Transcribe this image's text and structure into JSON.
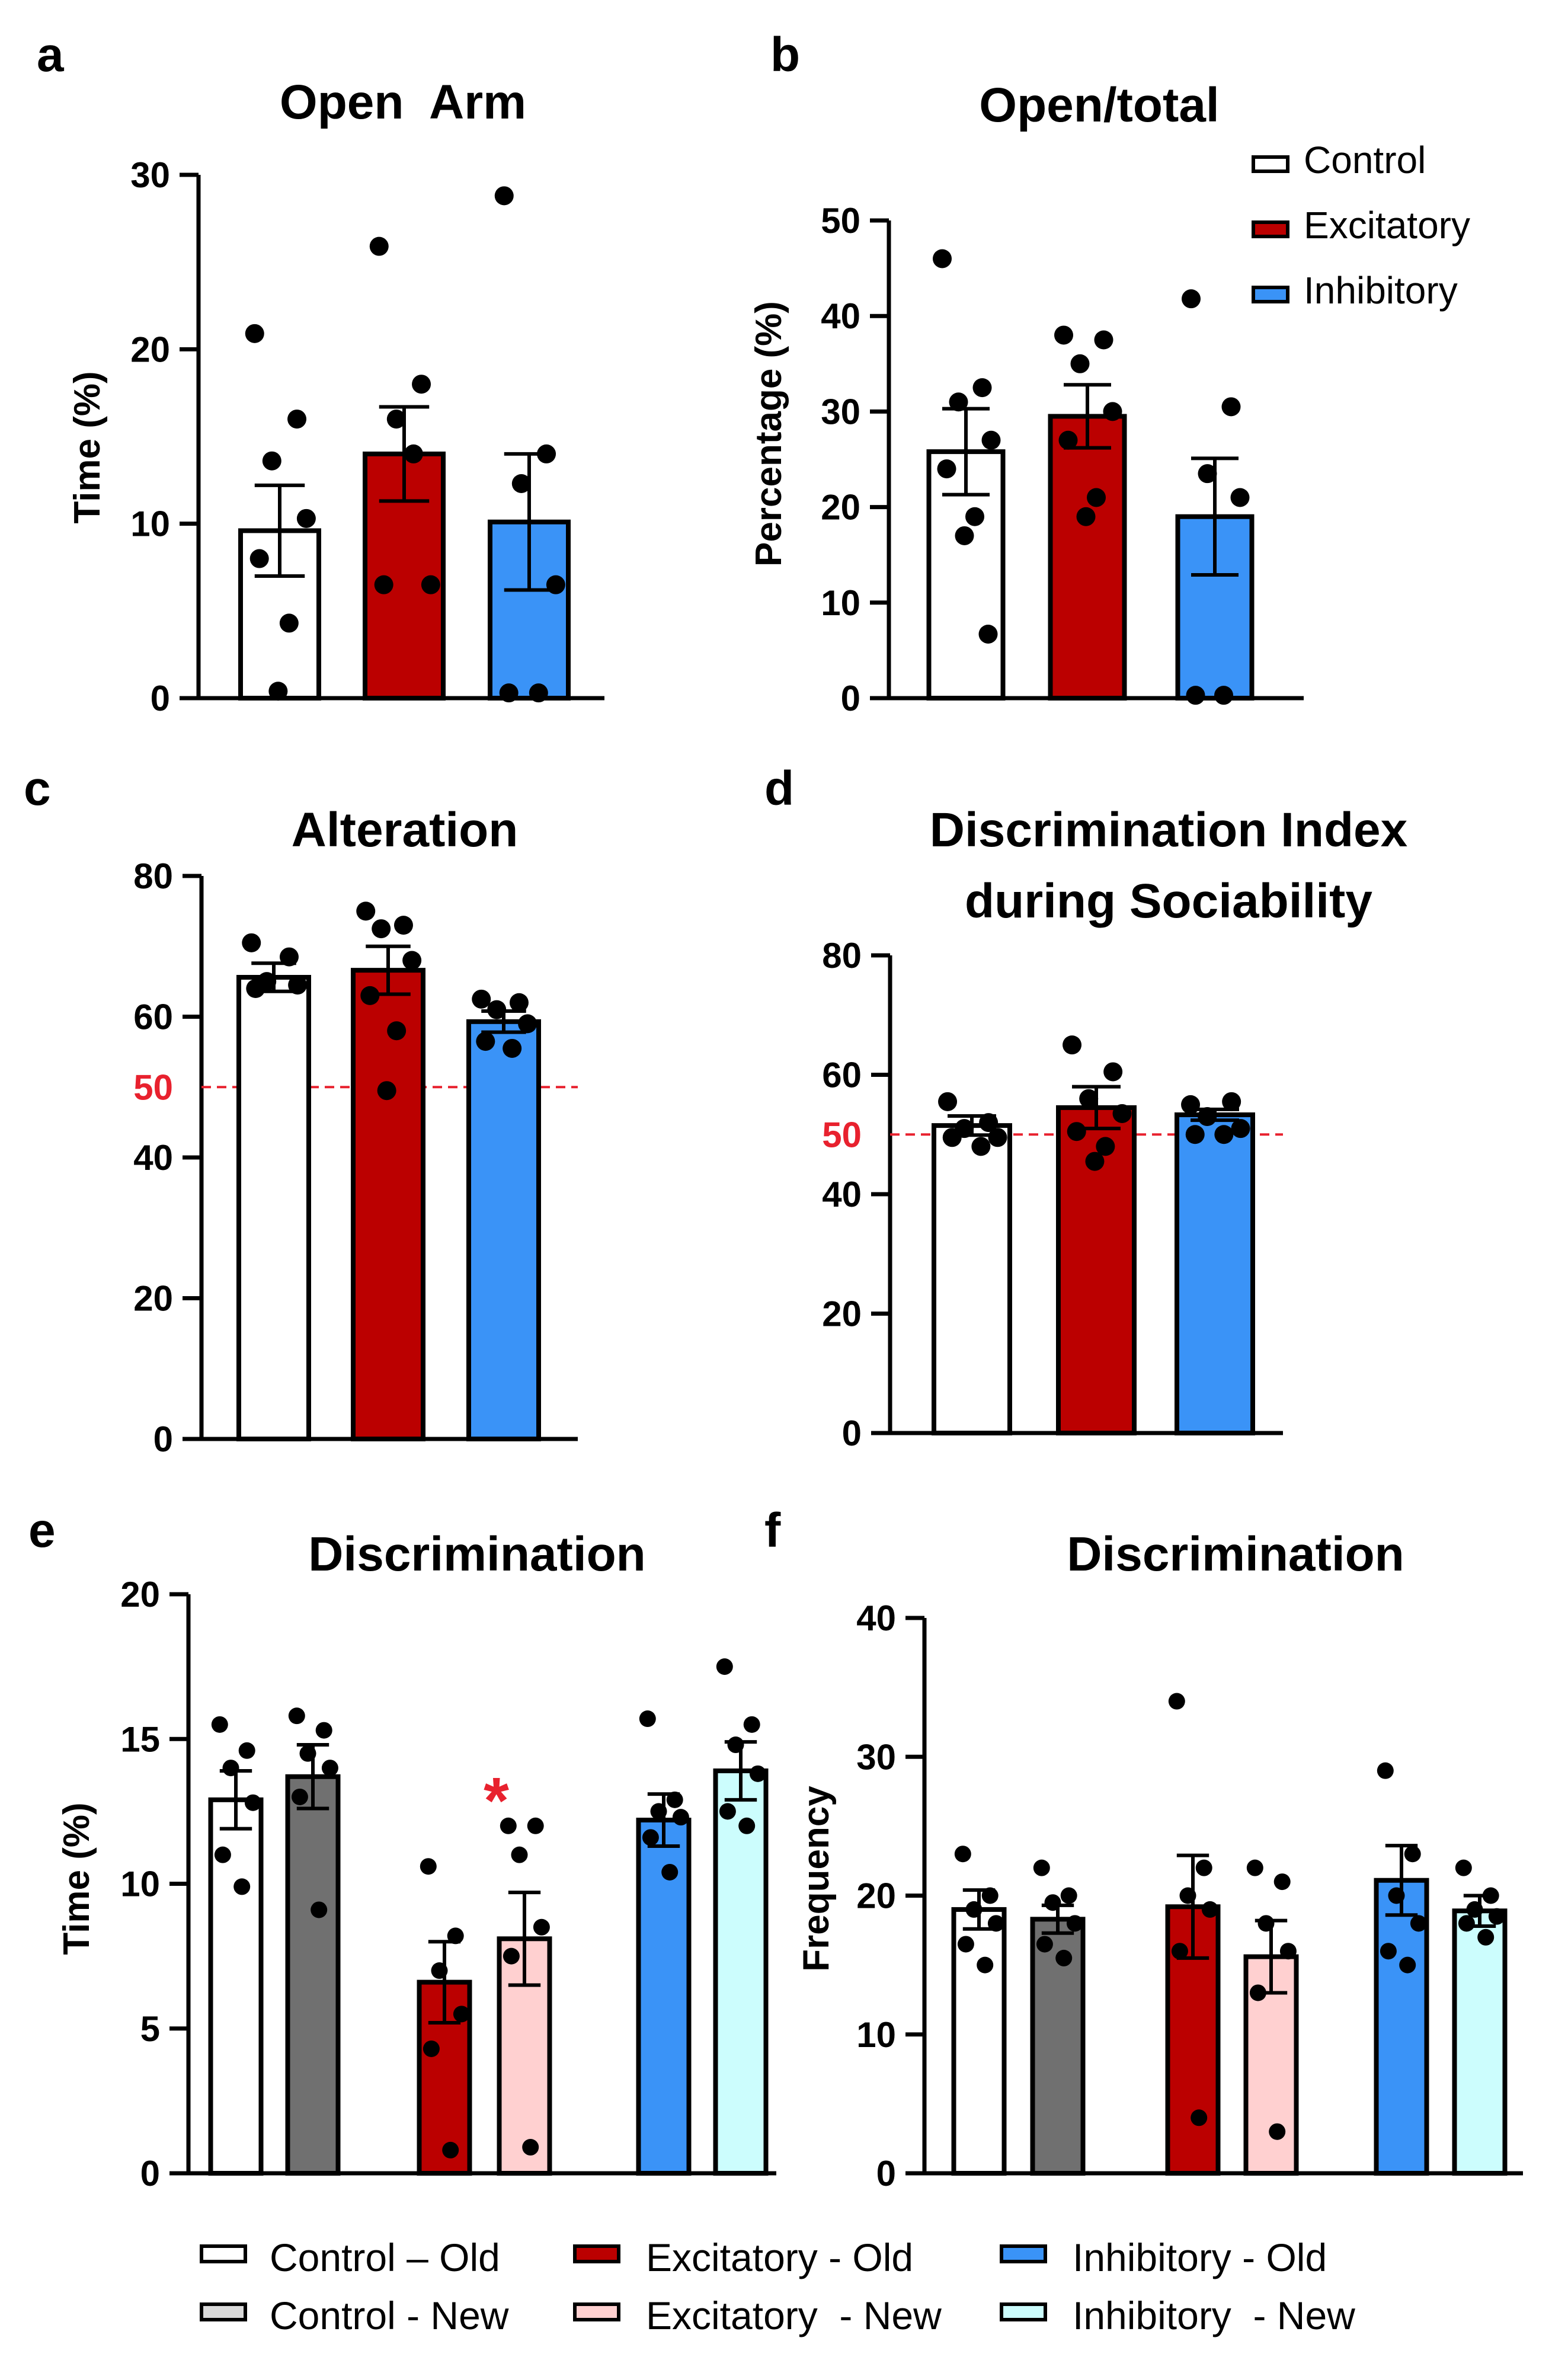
{
  "colors": {
    "control": "#ffffff",
    "excitatory": "#bb0000",
    "inhibitory": "#3a93f7",
    "control_old": "#ffffff",
    "control_new": "#707070",
    "excitatory_old": "#bb0000",
    "excitatory_new": "#ffd0d0",
    "inhibitory_old": "#3a93f7",
    "inhibitory_new": "#ccfdfd",
    "reference": "#e8212e",
    "significance": "#e8212e"
  },
  "legend_top": {
    "items": [
      {
        "label": "Control",
        "color": "#ffffff"
      },
      {
        "label": "Excitatory",
        "color": "#bb0000"
      },
      {
        "label": "Inhibitory",
        "color": "#3a93f7"
      }
    ]
  },
  "legend_bottom": {
    "items": [
      {
        "label": "Control – Old",
        "color": "#ffffff"
      },
      {
        "label": "Excitatory - Old",
        "color": "#bb0000"
      },
      {
        "label": "Inhibitory - Old",
        "color": "#3a93f7"
      },
      {
        "label": "Control - New",
        "color": "#d9d9d9"
      },
      {
        "label": "Excitatory  - New",
        "color": "#ffd0d0"
      },
      {
        "label": "Inhibitory  - New",
        "color": "#ccfdfd"
      }
    ]
  },
  "chart_data": [
    {
      "panel": "a",
      "type": "bar",
      "title": "Open  Arm",
      "xlabel": "",
      "ylabel": "Time (%)",
      "ylim": [
        0,
        30
      ],
      "yticks": [
        0,
        10,
        20,
        30
      ],
      "categories": [
        "Control",
        "Excitatory",
        "Inhibitory"
      ],
      "values": [
        9.6,
        14.0,
        10.1
      ],
      "errors": [
        2.6,
        2.7,
        3.9
      ],
      "points": [
        [
          20.9,
          16.0,
          13.6,
          10.3,
          8.0,
          4.3,
          0.4
        ],
        [
          25.9,
          18.0,
          16.0,
          6.5,
          6.5,
          14.0
        ],
        [
          28.8,
          14.0,
          12.3,
          6.5,
          0.3,
          0.3
        ]
      ]
    },
    {
      "panel": "b",
      "type": "bar",
      "title": "Open/total",
      "xlabel": "",
      "ylabel": "Percentage (%)",
      "ylim": [
        0,
        50
      ],
      "yticks": [
        0,
        10,
        20,
        30,
        40,
        50
      ],
      "categories": [
        "Control",
        "Excitatory",
        "Inhibitory"
      ],
      "values": [
        25.8,
        29.5,
        19.0
      ],
      "errors": [
        4.5,
        3.3,
        6.1
      ],
      "points": [
        [
          46.0,
          32.5,
          31.0,
          27.0,
          24.0,
          19.0,
          17.0,
          6.7
        ],
        [
          38.0,
          37.5,
          35.0,
          30.0,
          27.0,
          21.0,
          19.0
        ],
        [
          41.8,
          30.5,
          23.5,
          21.0,
          0.3,
          0.3
        ]
      ],
      "legend": "top-right"
    },
    {
      "panel": "c",
      "type": "bar",
      "title": "Alteration",
      "xlabel": "",
      "ylabel": "",
      "ylim": [
        0,
        80
      ],
      "yticks": [
        0,
        20,
        40,
        60,
        80
      ],
      "reference_line": {
        "value": 50,
        "label": "50"
      },
      "categories": [
        "Control",
        "Excitatory",
        "Inhibitory"
      ],
      "values": [
        65.6,
        66.6,
        59.3
      ],
      "errors": [
        2.0,
        3.4,
        1.5
      ],
      "points": [
        [
          70.5,
          68.5,
          65.0,
          64.5,
          64.0
        ],
        [
          75.0,
          73.0,
          72.5,
          68.0,
          63.0,
          58.0,
          49.5
        ],
        [
          62.5,
          62.0,
          61.0,
          59.0,
          56.5,
          55.5
        ]
      ]
    },
    {
      "panel": "d",
      "type": "bar",
      "title": "Discrimination Index",
      "subtitle": "during Sociability",
      "xlabel": "",
      "ylabel": "",
      "ylim": [
        0,
        80
      ],
      "yticks": [
        0,
        20,
        40,
        60,
        80
      ],
      "reference_line": {
        "value": 50,
        "label": "50"
      },
      "categories": [
        "Control",
        "Excitatory",
        "Inhibitory"
      ],
      "values": [
        51.5,
        54.5,
        53.3
      ],
      "errors": [
        1.6,
        3.5,
        0.9
      ],
      "points": [
        [
          55.5,
          52.0,
          51.0,
          49.5,
          49.5,
          48.0
        ],
        [
          65.0,
          60.5,
          56.0,
          53.5,
          50.5,
          48.0,
          45.5
        ],
        [
          55.0,
          55.5,
          53.0,
          51.0,
          50.0,
          50.0
        ]
      ]
    },
    {
      "panel": "e",
      "type": "bar",
      "title": "Discrimination",
      "xlabel": "",
      "ylabel": "Time (%)",
      "ylim": [
        0,
        20
      ],
      "yticks": [
        0,
        5,
        10,
        15,
        20
      ],
      "categories": [
        "Control – Old",
        "Control - New",
        "Excitatory - Old",
        "Excitatory  - New",
        "Inhibitory - Old",
        "Inhibitory  - New"
      ],
      "values": [
        12.9,
        13.7,
        6.6,
        8.1,
        12.2,
        13.9
      ],
      "errors": [
        1.0,
        1.1,
        1.4,
        1.6,
        0.9,
        1.0
      ],
      "points": [
        [
          15.5,
          14.6,
          14.0,
          12.8,
          11.0,
          9.9
        ],
        [
          15.8,
          15.3,
          14.5,
          14.0,
          13.0,
          9.1
        ],
        [
          10.6,
          8.2,
          7.0,
          5.5,
          4.3,
          0.8
        ],
        [
          12.0,
          12.0,
          11.0,
          8.5,
          7.5,
          0.9
        ],
        [
          15.7,
          12.9,
          12.5,
          12.3,
          11.6,
          10.4
        ],
        [
          17.5,
          15.5,
          14.8,
          13.8,
          12.5,
          12.0
        ]
      ],
      "annotation": {
        "text": "*",
        "category_index": 3
      }
    },
    {
      "panel": "f",
      "type": "bar",
      "title": "Discrimination",
      "xlabel": "",
      "ylabel": "Frequency",
      "ylim": [
        0,
        40
      ],
      "yticks": [
        0,
        10,
        20,
        30,
        40
      ],
      "categories": [
        "Control – Old",
        "Control - New",
        "Excitatory - Old",
        "Excitatory  - New",
        "Inhibitory - Old",
        "Inhibitory  - New"
      ],
      "values": [
        19.0,
        18.3,
        19.2,
        15.6,
        21.1,
        18.9
      ],
      "errors": [
        1.4,
        1.0,
        3.7,
        2.6,
        2.5,
        1.1
      ],
      "points": [
        [
          23.0,
          20.0,
          19.0,
          18.0,
          16.5,
          15.0
        ],
        [
          22.0,
          20.0,
          19.5,
          18.0,
          16.5,
          15.5
        ],
        [
          34.0,
          22.0,
          20.0,
          19.0,
          16.0,
          4.0
        ],
        [
          22.0,
          21.0,
          18.0,
          16.0,
          13.0,
          3.0
        ],
        [
          29.0,
          23.0,
          20.0,
          18.0,
          16.0,
          15.0
        ],
        [
          22.0,
          20.0,
          19.0,
          18.5,
          18.0,
          17.0
        ]
      ]
    }
  ]
}
